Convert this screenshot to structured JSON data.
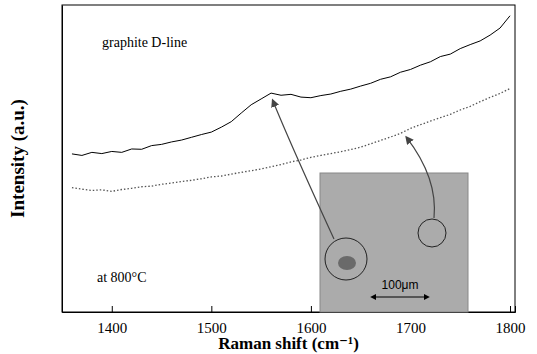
{
  "chart_data": {
    "type": "line",
    "x_label": "Raman shift (cm⁻¹)",
    "y_label": "Intensity (a.u.)",
    "annotations": [
      "graphite D-line",
      "at 800°C",
      "100μm"
    ],
    "x": [
      1360,
      1370,
      1380,
      1390,
      1400,
      1410,
      1420,
      1430,
      1440,
      1450,
      1460,
      1470,
      1480,
      1490,
      1500,
      1510,
      1520,
      1530,
      1540,
      1550,
      1560,
      1570,
      1580,
      1590,
      1600,
      1610,
      1620,
      1630,
      1640,
      1650,
      1660,
      1670,
      1680,
      1690,
      1700,
      1710,
      1720,
      1730,
      1740,
      1750,
      1760,
      1770,
      1780,
      1790,
      1800
    ],
    "series": [
      {
        "color": "#000000",
        "line_style": "solid",
        "values": [
          51.5,
          51.0,
          52.0,
          51.6,
          52.3,
          52.0,
          53.1,
          53.0,
          54.2,
          54.6,
          55.4,
          56.0,
          56.9,
          57.8,
          58.6,
          60.2,
          62.0,
          64.8,
          67.5,
          69.4,
          71.3,
          70.6,
          70.9,
          70.0,
          69.8,
          70.5,
          71.0,
          71.9,
          72.6,
          73.6,
          74.5,
          75.8,
          76.6,
          78.1,
          79.0,
          80.4,
          81.5,
          83.2,
          84.0,
          85.8,
          87.1,
          88.3,
          90.2,
          92.5,
          96.5
        ]
      },
      {
        "color": "#555555",
        "line_style": "dotted",
        "values": [
          40.5,
          40.0,
          39.6,
          39.8,
          39.3,
          39.9,
          40.3,
          40.8,
          41.0,
          41.6,
          42.0,
          42.5,
          42.9,
          43.4,
          44.0,
          44.3,
          44.9,
          45.5,
          46.0,
          46.6,
          47.3,
          48.0,
          48.9,
          49.5,
          50.4,
          51.0,
          51.6,
          52.2,
          52.9,
          53.7,
          54.8,
          55.9,
          57.0,
          58.2,
          59.8,
          61.0,
          62.2,
          63.3,
          64.4,
          65.8,
          67.0,
          68.5,
          69.9,
          71.2,
          72.8
        ]
      }
    ],
    "xlim": [
      1350,
      1805
    ],
    "xticks": [
      1400,
      1500,
      1600,
      1700,
      1800
    ],
    "ylim": [
      0,
      100
    ],
    "tick_labels": "x",
    "grid": false
  }
}
